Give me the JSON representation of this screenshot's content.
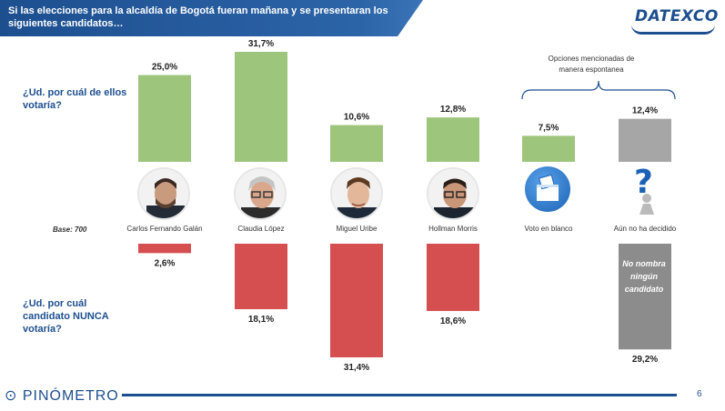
{
  "header": {
    "title": "Si las elecciones para la alcaldía de Bogotá fueran mañana y se presentaran los siguientes candidatos…",
    "logo": "DATEXCO"
  },
  "questions": {
    "top": "¿Ud. por cuál de ellos votaría?",
    "bottom": "¿Ud. por cuál candidato NUNCA votaría?"
  },
  "base_label": "Base: 700",
  "spontaneous_note": "Opciones mencionadas de manera espontanea",
  "no_nombra": "No nombra ningún candidato",
  "footer": {
    "brand": "PINÓMETRO",
    "page": "6"
  },
  "chart_data": [
    {
      "type": "bar",
      "title": "¿Ud. por cuál de ellos votaría?",
      "categories": [
        "Carlos Fernando Galán",
        "Claudia López",
        "Miguel Uribe",
        "Hollman Morris",
        "Voto en blanco",
        "Aún no ha decidido"
      ],
      "values": [
        25.0,
        31.7,
        10.6,
        12.8,
        7.5,
        12.4
      ],
      "value_labels": [
        "25,0%",
        "31,7%",
        "10,6%",
        "12,8%",
        "7,5%",
        "12,4%"
      ],
      "colors": [
        "#9dc67c",
        "#9dc67c",
        "#9dc67c",
        "#9dc67c",
        "#9dc67c",
        "#a6a6a6"
      ],
      "ylim": [
        0,
        31.7
      ]
    },
    {
      "type": "bar",
      "title": "¿Ud. por cuál candidato NUNCA votaría?",
      "categories": [
        "Carlos Fernando Galán",
        "Claudia López",
        "Miguel Uribe",
        "Hollman Morris",
        "No nombra ningún candidato"
      ],
      "values": [
        2.6,
        18.1,
        31.4,
        18.6,
        29.2
      ],
      "value_labels": [
        "2,6%",
        "18,1%",
        "31,4%",
        "18,6%",
        "29,2%"
      ],
      "colors": [
        "#d64f50",
        "#d64f50",
        "#d64f50",
        "#d64f50",
        "#8c8c8c"
      ],
      "ylim": [
        0,
        31.4
      ]
    }
  ]
}
